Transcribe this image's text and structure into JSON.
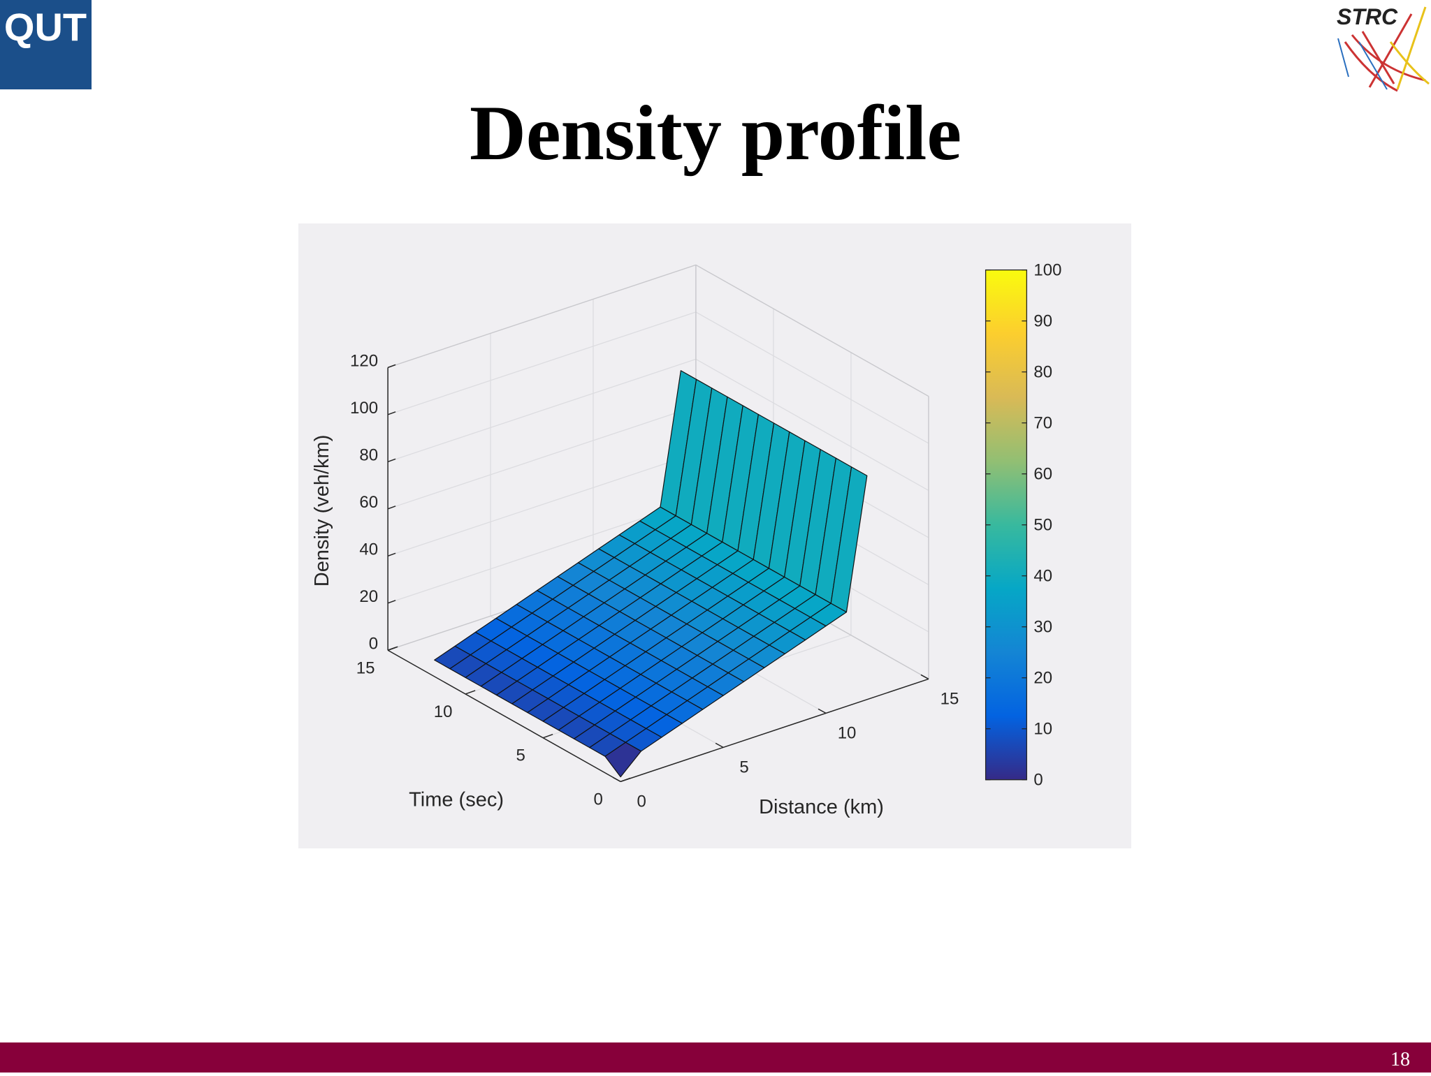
{
  "slide": {
    "title": "Density profile",
    "page_number": "18",
    "logo_left": "QUT",
    "logo_right": "STRC"
  },
  "chart_data": {
    "type": "surface",
    "xlabel": "Distance (km)",
    "ylabel": "Time (sec)",
    "zlabel": "Density (veh/km)",
    "x": [
      0,
      1,
      2,
      3,
      4,
      5,
      6,
      7,
      8,
      9,
      10,
      11,
      12
    ],
    "y": [
      0,
      1,
      2,
      3,
      4,
      5,
      6,
      7,
      8,
      9,
      10,
      11,
      12
    ],
    "z": [
      [
        2,
        10,
        13,
        16,
        19,
        22,
        25,
        28,
        31,
        34,
        37,
        40,
        95
      ],
      [
        7,
        10,
        13,
        16,
        19,
        22,
        25,
        28,
        31,
        34,
        37,
        40,
        95
      ],
      [
        7,
        10,
        13,
        16,
        19,
        22,
        25,
        28,
        31,
        34,
        37,
        40,
        95
      ],
      [
        7,
        10,
        13,
        16,
        19,
        22,
        25,
        28,
        31,
        34,
        37,
        40,
        95
      ],
      [
        7,
        10,
        13,
        16,
        19,
        22,
        25,
        28,
        31,
        34,
        37,
        40,
        95
      ],
      [
        7,
        10,
        13,
        16,
        19,
        22,
        25,
        28,
        31,
        34,
        37,
        40,
        95
      ],
      [
        7,
        10,
        13,
        16,
        19,
        22,
        25,
        28,
        31,
        34,
        37,
        40,
        95
      ],
      [
        7,
        10,
        13,
        16,
        19,
        22,
        25,
        28,
        31,
        34,
        37,
        40,
        95
      ],
      [
        7,
        10,
        13,
        16,
        19,
        22,
        25,
        28,
        31,
        34,
        37,
        40,
        95
      ],
      [
        7,
        10,
        13,
        16,
        19,
        22,
        25,
        28,
        31,
        34,
        37,
        40,
        95
      ],
      [
        7,
        10,
        13,
        16,
        19,
        22,
        25,
        28,
        31,
        34,
        37,
        40,
        95
      ],
      [
        7,
        10,
        13,
        16,
        19,
        22,
        25,
        28,
        31,
        34,
        37,
        40,
        95
      ],
      [
        7,
        10,
        13,
        16,
        19,
        22,
        25,
        28,
        31,
        34,
        37,
        40,
        95
      ]
    ],
    "xlim": [
      0,
      15
    ],
    "xticks": [
      0,
      5,
      10,
      15
    ],
    "ylim": [
      0,
      15
    ],
    "yticks": [
      0,
      5,
      10,
      15
    ],
    "zlim": [
      0,
      120
    ],
    "zticks": [
      0,
      20,
      40,
      60,
      80,
      100,
      120
    ],
    "colormap": "parula",
    "clim": [
      0,
      100
    ],
    "colorbar_ticks": [
      0,
      10,
      20,
      30,
      40,
      50,
      60,
      70,
      80,
      90,
      100
    ],
    "grid": true
  }
}
